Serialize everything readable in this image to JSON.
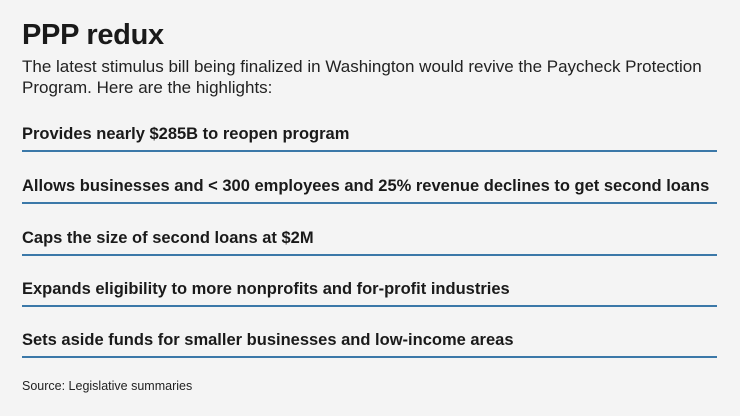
{
  "title": "PPP redux",
  "subtitle": "The latest stimulus bill being finalized in Washington would revive the Paycheck Protection Program. Here are the highlights:",
  "highlights": [
    "Provides nearly $285B to reopen program",
    "Allows businesses and < 300 employees and 25% revenue declines to get second loans",
    "Caps the size of second loans at $2M",
    "Expands eligibility to more nonprofits and for-profit industries",
    "Sets aside funds for smaller businesses and low-income areas"
  ],
  "source": "Source: Legislative summaries",
  "colors": {
    "background": "#f4f4f4",
    "rule": "#3b78a8",
    "text": "#1a1a1a"
  }
}
